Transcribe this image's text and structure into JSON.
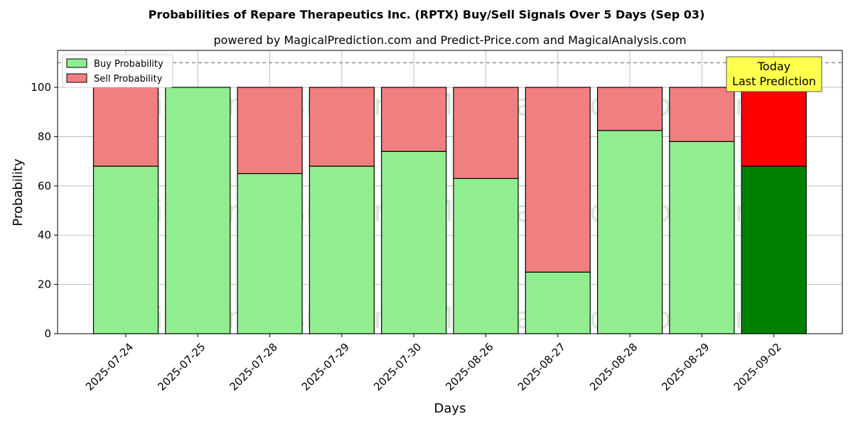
{
  "chart_data": {
    "type": "bar",
    "stacked": true,
    "title": "Probabilities of Repare Therapeutics Inc. (RPTX) Buy/Sell Signals Over 5 Days (Sep 03)",
    "subtitle": "powered by MagicalPrediction.com and Predict-Price.com and MagicalAnalysis.com",
    "xlabel": "Days",
    "ylabel": "Probability",
    "ylim": [
      0,
      115
    ],
    "yticks": [
      0,
      20,
      40,
      60,
      80,
      100
    ],
    "grid": true,
    "legend_position": "top-left",
    "threshold_line": 110,
    "categories": [
      "2025-07-24",
      "2025-07-25",
      "2025-07-28",
      "2025-07-29",
      "2025-07-30",
      "2025-08-26",
      "2025-08-27",
      "2025-08-28",
      "2025-08-29",
      "2025-09-02"
    ],
    "series": [
      {
        "name": "Buy Probability",
        "values": [
          68,
          100,
          65,
          68,
          74,
          63,
          25,
          82.5,
          78,
          68
        ],
        "color": "#90ee90",
        "highlight_color": "#008000"
      },
      {
        "name": "Sell Probability",
        "values": [
          32,
          0,
          35,
          32,
          26,
          37,
          75,
          17.5,
          22,
          32
        ],
        "color": "#f08080",
        "highlight_color": "#ff0000"
      }
    ],
    "highlight_index": 9,
    "annotation": {
      "line1": "Today",
      "line2": "Last Prediction",
      "color": "#ffff4d"
    },
    "watermarks": [
      "MagicalAnalysis.com",
      "MagicalPrediction.com"
    ]
  }
}
